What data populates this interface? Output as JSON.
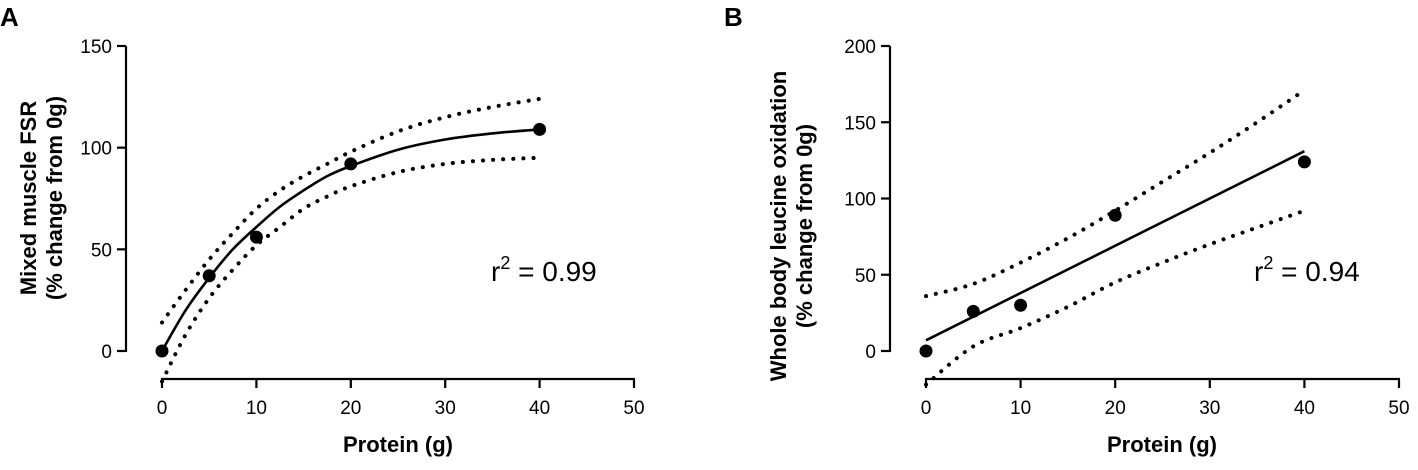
{
  "chart_data": [
    {
      "panel": "A",
      "type": "scatter",
      "xlabel": "Protein (g)",
      "ylabel_line1": "Mixed muscle FSR",
      "ylabel_line2": "(% change from 0g)",
      "xlim": [
        0,
        50
      ],
      "ylim": [
        0,
        150
      ],
      "xticks": [
        0,
        10,
        20,
        30,
        40,
        50
      ],
      "yticks": [
        0,
        50,
        100,
        150
      ],
      "points": {
        "x": [
          0,
          5,
          10,
          20,
          40
        ],
        "y": [
          0,
          37,
          56,
          92,
          109
        ]
      },
      "fit": {
        "model": "exponential",
        "x": [
          0,
          2.5,
          5,
          7.5,
          10,
          12.5,
          15,
          17.5,
          20,
          25,
          30,
          35,
          40
        ],
        "y": [
          0,
          20,
          36,
          50,
          61,
          71,
          79,
          86,
          91,
          99,
          104,
          107,
          109
        ]
      },
      "ci_upper": {
        "x": [
          0,
          2.5,
          5,
          7.5,
          10,
          12.5,
          15,
          17.5,
          20,
          25,
          30,
          35,
          40
        ],
        "y": [
          14,
          30,
          45,
          58,
          70,
          79,
          86,
          92,
          98,
          108,
          115,
          120,
          124
        ]
      },
      "ci_lower": {
        "x": [
          0,
          2.5,
          5,
          7.5,
          10,
          12.5,
          15,
          17.5,
          20,
          25,
          30,
          35,
          40
        ],
        "y": [
          -15,
          8,
          26,
          40,
          52,
          61,
          70,
          76,
          81,
          88,
          92,
          94,
          95
        ]
      },
      "r2_prefix": "r",
      "r2_sup": "2",
      "r2_value": " = 0.99"
    },
    {
      "panel": "B",
      "type": "scatter",
      "xlabel": "Protein (g)",
      "ylabel_line1": "Whole body leucine oxidation",
      "ylabel_line2": "(% change from 0g)",
      "xlim": [
        0,
        50
      ],
      "ylim": [
        0,
        200
      ],
      "xticks": [
        0,
        10,
        20,
        30,
        40,
        50
      ],
      "yticks": [
        0,
        50,
        100,
        150,
        200
      ],
      "points": {
        "x": [
          0,
          5,
          10,
          20,
          40
        ],
        "y": [
          0,
          26,
          30,
          89,
          124
        ]
      },
      "fit": {
        "model": "linear",
        "x": [
          0,
          40
        ],
        "y": [
          7,
          131
        ]
      },
      "ci_upper": {
        "x": [
          0,
          5,
          10,
          15,
          20,
          25,
          30,
          35,
          40
        ],
        "y": [
          36,
          44,
          58,
          74,
          92,
          111,
          130,
          150,
          171
        ]
      },
      "ci_lower": {
        "x": [
          0,
          5,
          10,
          15,
          20,
          25,
          30,
          35,
          40
        ],
        "y": [
          -22,
          3,
          15,
          29,
          45,
          58,
          70,
          81,
          92
        ]
      },
      "r2_prefix": "r",
      "r2_sup": "2",
      "r2_value": " = 0.94"
    }
  ]
}
